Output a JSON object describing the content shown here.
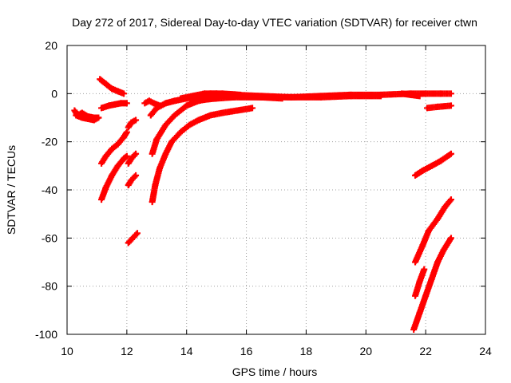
{
  "chart_data": {
    "type": "scatter",
    "title": "Day 272 of 2017, Sidereal Day-to-day VTEC variation (SDTVAR) for receiver ctwn",
    "xlabel": "GPS time / hours",
    "ylabel": "SDTVAR / TECUs",
    "xlim": [
      10,
      24
    ],
    "ylim": [
      -100,
      20
    ],
    "xticks": [
      10,
      12,
      14,
      16,
      18,
      20,
      22,
      24
    ],
    "yticks": [
      -100,
      -80,
      -60,
      -40,
      -20,
      0,
      20
    ],
    "grid": true,
    "marker": "+",
    "color": "#ff0000",
    "series": [
      {
        "name": "trace-1",
        "x": [
          10.25,
          10.35,
          10.5,
          10.7,
          10.9,
          11.05
        ],
        "y": [
          -7,
          -9,
          -8,
          -9.5,
          -10,
          -10
        ]
      },
      {
        "name": "trace-2",
        "x": [
          10.3,
          10.5,
          10.7,
          10.9,
          11.05
        ],
        "y": [
          -9,
          -10,
          -10.5,
          -11,
          -10
        ]
      },
      {
        "name": "trace-3",
        "x": [
          11.1,
          11.3,
          11.5,
          11.7,
          11.9
        ],
        "y": [
          6,
          4,
          2,
          1,
          0
        ]
      },
      {
        "name": "trace-4",
        "x": [
          11.15,
          11.4,
          11.6,
          11.8,
          12.0
        ],
        "y": [
          -6,
          -5,
          -4.5,
          -4,
          -4
        ]
      },
      {
        "name": "trace-5",
        "x": [
          11.15,
          11.3,
          11.5,
          11.7,
          11.9,
          12.0
        ],
        "y": [
          -29,
          -26,
          -23,
          -21,
          -18,
          -16
        ]
      },
      {
        "name": "trace-6",
        "x": [
          11.15,
          11.3,
          11.5,
          11.7,
          11.9,
          12.0
        ],
        "y": [
          -44,
          -39,
          -34,
          -30,
          -27,
          -26
        ]
      },
      {
        "name": "trace-7",
        "x": [
          12.05,
          12.15,
          12.3
        ],
        "y": [
          -14,
          -12,
          -11
        ]
      },
      {
        "name": "trace-8",
        "x": [
          12.05,
          12.15,
          12.3
        ],
        "y": [
          -29,
          -27,
          -25
        ]
      },
      {
        "name": "trace-9",
        "x": [
          12.05,
          12.15,
          12.3
        ],
        "y": [
          -38,
          -36,
          -34
        ]
      },
      {
        "name": "trace-10",
        "x": [
          12.05,
          12.2,
          12.35
        ],
        "y": [
          -62,
          -60,
          -58
        ]
      },
      {
        "name": "trace-11",
        "x": [
          12.6,
          12.75,
          12.9,
          13.1
        ],
        "y": [
          -4,
          -3,
          -4,
          -5
        ]
      },
      {
        "name": "trace-12",
        "x": [
          12.8,
          13.0,
          13.3,
          13.6,
          14.0,
          14.4,
          14.8,
          15.2,
          15.8
        ],
        "y": [
          -9,
          -6,
          -4,
          -3,
          -2,
          -1,
          0,
          0,
          -0.5
        ]
      },
      {
        "name": "trace-13",
        "x": [
          12.85,
          13.0,
          13.3,
          13.6,
          14.0,
          14.4,
          14.8,
          15.2,
          15.8,
          16.5,
          17.2
        ],
        "y": [
          -25,
          -19,
          -13,
          -9,
          -5,
          -3,
          -2,
          -1,
          -1,
          -1.5,
          -2
        ]
      },
      {
        "name": "trace-14",
        "x": [
          12.85,
          12.95,
          13.1,
          13.3,
          13.5,
          13.8,
          14.1,
          14.4,
          14.8,
          15.2,
          15.7,
          16.2
        ],
        "y": [
          -45,
          -38,
          -31,
          -25,
          -20,
          -16,
          -13,
          -11,
          -9,
          -8,
          -7,
          -6
        ]
      },
      {
        "name": "trace-15",
        "x": [
          13.8,
          14.2,
          14.6,
          15.0,
          15.6,
          16.5,
          17.5,
          18.5,
          19.5,
          20.5,
          21.5,
          22.5,
          22.85
        ],
        "y": [
          -2,
          -1,
          0,
          0,
          -0.5,
          -1,
          -1.5,
          -1,
          -0.5,
          -0.5,
          0,
          0,
          0
        ]
      },
      {
        "name": "trace-16",
        "x": [
          14.2,
          14.6,
          15.0,
          15.6,
          16.5,
          17.5,
          18.5,
          19.5,
          20.5
        ],
        "y": [
          -3,
          -2.5,
          -2,
          -1.5,
          -1.5,
          -1.5,
          -1.5,
          -1,
          -1
        ]
      },
      {
        "name": "trace-17",
        "x": [
          21.2,
          21.5,
          21.8
        ],
        "y": [
          0,
          -0.5,
          -1
        ]
      },
      {
        "name": "trace-18",
        "x": [
          22.05,
          22.4,
          22.85
        ],
        "y": [
          -6,
          -5.5,
          -5
        ]
      },
      {
        "name": "trace-19",
        "x": [
          21.65,
          21.9,
          22.2,
          22.5,
          22.85
        ],
        "y": [
          -34,
          -32,
          -30,
          -28,
          -25
        ]
      },
      {
        "name": "trace-20",
        "x": [
          21.65,
          21.9,
          22.1,
          22.4,
          22.65,
          22.85
        ],
        "y": [
          -70,
          -63,
          -57,
          -52,
          -47,
          -44
        ]
      },
      {
        "name": "trace-21",
        "x": [
          21.65,
          21.8,
          21.95
        ],
        "y": [
          -84,
          -78,
          -73
        ]
      },
      {
        "name": "trace-22",
        "x": [
          21.6,
          21.8,
          22.0,
          22.2,
          22.4,
          22.6,
          22.85
        ],
        "y": [
          -98,
          -91,
          -84,
          -77,
          -70,
          -65,
          -60
        ]
      }
    ]
  }
}
